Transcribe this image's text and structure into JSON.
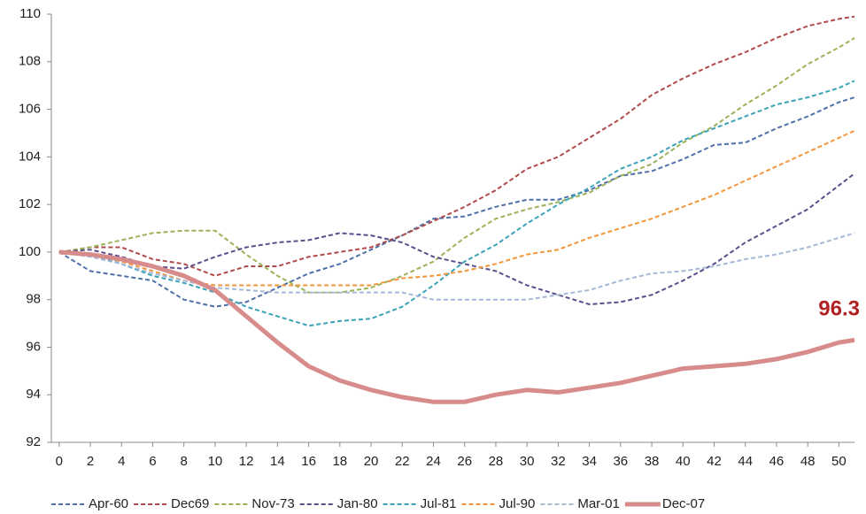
{
  "chart_data": {
    "type": "line",
    "annotation": "96.3",
    "x": [
      0,
      2,
      4,
      6,
      8,
      10,
      12,
      14,
      16,
      18,
      20,
      22,
      24,
      26,
      28,
      30,
      32,
      34,
      36,
      38,
      40,
      42,
      44,
      46,
      48,
      50,
      51
    ],
    "xlim": [
      -0.5,
      51
    ],
    "xticks": [
      0,
      2,
      4,
      6,
      8,
      10,
      12,
      14,
      16,
      18,
      20,
      22,
      24,
      26,
      28,
      30,
      32,
      34,
      36,
      38,
      40,
      42,
      44,
      46,
      48,
      50
    ],
    "ylim": [
      92,
      110
    ],
    "yticks": [
      92,
      94,
      96,
      98,
      100,
      102,
      104,
      106,
      108,
      110
    ],
    "grid": false,
    "legend": "bottom",
    "series": [
      {
        "name": "Apr-60",
        "color": "#4F6FA8",
        "linestyle": "dashed",
        "values": [
          100,
          99.2,
          99.0,
          98.8,
          98.0,
          97.7,
          97.9,
          98.5,
          99.1,
          99.5,
          100.1,
          100.7,
          101.4,
          101.5,
          101.9,
          102.2,
          102.2,
          102.6,
          103.2,
          103.4,
          103.9,
          104.5,
          104.6,
          105.2,
          105.7,
          106.3,
          106.5
        ]
      },
      {
        "name": "Dec69",
        "color": "#B04A4A",
        "linestyle": "dashed",
        "values": [
          100,
          100.2,
          100.2,
          99.7,
          99.5,
          99.0,
          99.4,
          99.4,
          99.8,
          100.0,
          100.2,
          100.7,
          101.3,
          101.9,
          102.6,
          103.5,
          104.0,
          104.8,
          105.6,
          106.6,
          107.3,
          107.9,
          108.4,
          109.0,
          109.5,
          109.8,
          109.9
        ]
      },
      {
        "name": "Nov-73",
        "color": "#9BB357",
        "linestyle": "dashed",
        "values": [
          100,
          100.2,
          100.5,
          100.8,
          100.9,
          100.9,
          99.9,
          99.0,
          98.3,
          98.3,
          98.5,
          99.0,
          99.6,
          100.6,
          101.4,
          101.8,
          102.1,
          102.5,
          103.2,
          103.7,
          104.6,
          105.3,
          106.2,
          107.0,
          107.9,
          108.6,
          109.0
        ]
      },
      {
        "name": "Jan-80",
        "color": "#5A4E8C",
        "linestyle": "dashed",
        "values": [
          100,
          100.1,
          99.8,
          99.4,
          99.3,
          99.8,
          100.2,
          100.4,
          100.5,
          100.8,
          100.7,
          100.4,
          99.8,
          99.5,
          99.2,
          98.6,
          98.2,
          97.8,
          97.9,
          98.2,
          98.8,
          99.5,
          100.4,
          101.1,
          101.8,
          102.8,
          103.3
        ]
      },
      {
        "name": "Jul-81",
        "color": "#3AA3B8",
        "linestyle": "dashed",
        "values": [
          100,
          99.9,
          99.5,
          99.0,
          98.7,
          98.3,
          97.7,
          97.3,
          96.9,
          97.1,
          97.2,
          97.7,
          98.6,
          99.6,
          100.3,
          101.2,
          102.0,
          102.7,
          103.5,
          104.0,
          104.7,
          105.2,
          105.7,
          106.2,
          106.5,
          106.9,
          107.2
        ]
      },
      {
        "name": "Jul-90",
        "color": "#F3963B",
        "linestyle": "dashed",
        "values": [
          100,
          99.9,
          99.6,
          99.2,
          98.8,
          98.6,
          98.6,
          98.6,
          98.6,
          98.6,
          98.6,
          98.9,
          99.0,
          99.2,
          99.5,
          99.9,
          100.1,
          100.6,
          101.0,
          101.4,
          101.9,
          102.4,
          103.0,
          103.6,
          104.2,
          104.8,
          105.1
        ]
      },
      {
        "name": "Mar-01",
        "color": "#A6B8D8",
        "linestyle": "dashed",
        "values": [
          100,
          99.8,
          99.5,
          99.1,
          98.8,
          98.5,
          98.4,
          98.3,
          98.3,
          98.3,
          98.3,
          98.3,
          98.0,
          98.0,
          98.0,
          98.0,
          98.2,
          98.4,
          98.8,
          99.1,
          99.2,
          99.4,
          99.7,
          99.9,
          100.2,
          100.6,
          100.8
        ]
      },
      {
        "name": "Dec-07",
        "color": "#D88B8B",
        "linestyle": "solid",
        "values": [
          100,
          99.9,
          99.7,
          99.4,
          99.0,
          98.4,
          97.3,
          96.2,
          95.2,
          94.6,
          94.2,
          93.9,
          93.7,
          93.7,
          94.0,
          94.2,
          94.1,
          94.3,
          94.5,
          94.8,
          95.1,
          95.2,
          95.3,
          95.5,
          95.8,
          96.2,
          96.3
        ]
      }
    ]
  }
}
